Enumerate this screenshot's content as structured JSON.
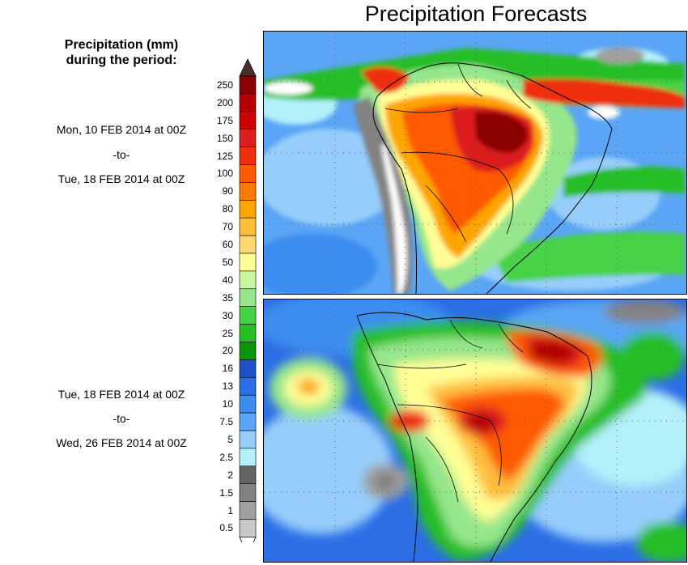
{
  "title": "Precipitation Forecasts",
  "legend": {
    "heading_line1": "Precipitation (mm)",
    "heading_line2": "during the period:",
    "levels": [
      "250",
      "200",
      "175",
      "150",
      "125",
      "100",
      "90",
      "80",
      "70",
      "60",
      "50",
      "40",
      "35",
      "30",
      "25",
      "20",
      "16",
      "13",
      "10",
      "7.5",
      "5",
      "2.5",
      "2",
      "1.5",
      "1",
      "0.5"
    ],
    "colors": [
      "#8b0000",
      "#b40000",
      "#cd0000",
      "#dc1e1e",
      "#ee2e0c",
      "#ff5a00",
      "#ff7a00",
      "#ffa500",
      "#ffbf3c",
      "#ffd870",
      "#ffff96",
      "#c8f5a0",
      "#96e68c",
      "#46d246",
      "#28be28",
      "#0a960a",
      "#1e50c8",
      "#2c6ee6",
      "#3c8cf0",
      "#5aa5f5",
      "#96cdfa",
      "#b4f0fa",
      "#646464",
      "#828282",
      "#a0a0a0",
      "#c8c8c8"
    ],
    "over_arrow_color": "#4a2e28",
    "under_arrow_color": "#ffffff"
  },
  "periods": [
    {
      "start": "Mon, 10 FEB 2014 at 00Z",
      "sep": "-to-",
      "end": "Tue, 18 FEB 2014 at 00Z"
    },
    {
      "start": "Tue, 18 FEB 2014 at 00Z",
      "sep": "-to-",
      "end": "Wed, 26 FEB 2014 at 00Z"
    }
  ]
}
